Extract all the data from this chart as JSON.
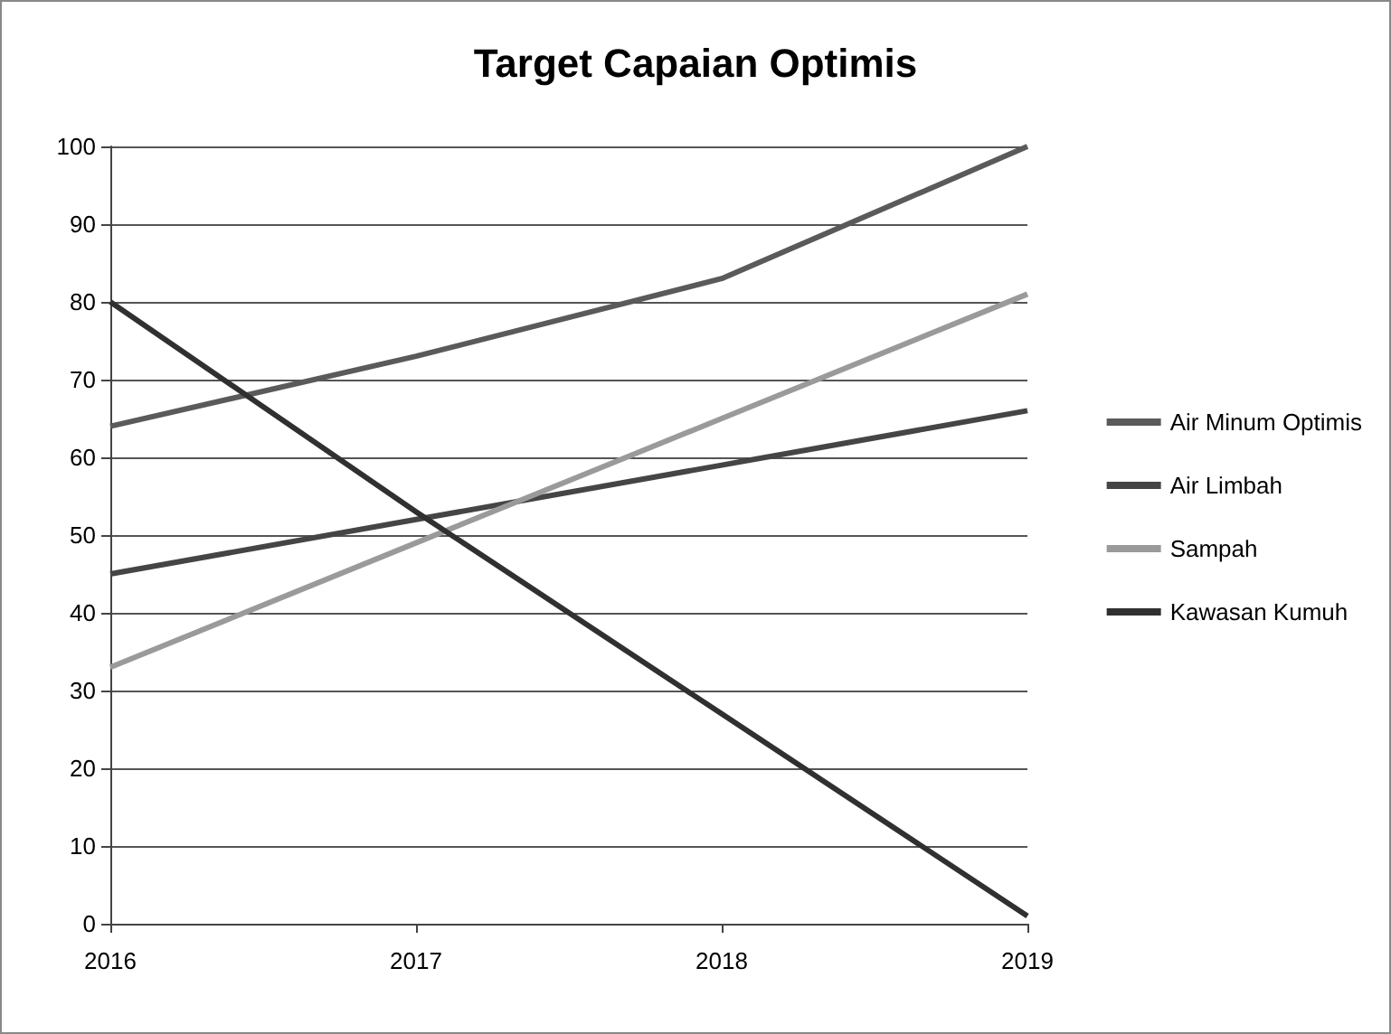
{
  "chart_data": {
    "type": "line",
    "title": "Target Capaian Optimis",
    "categories": [
      "2016",
      "2017",
      "2018",
      "2019"
    ],
    "series": [
      {
        "name": "Air Minum Optimis",
        "color": "#5a5a5a",
        "values": [
          64,
          73,
          83,
          100
        ]
      },
      {
        "name": "Air Limbah",
        "color": "#454545",
        "values": [
          45,
          52,
          59,
          66
        ]
      },
      {
        "name": "Sampah",
        "color": "#9a9a9a",
        "values": [
          33,
          49,
          65,
          81
        ]
      },
      {
        "name": "Kawasan Kumuh",
        "color": "#303030",
        "values": [
          80,
          53,
          27,
          1
        ]
      }
    ],
    "ylim": [
      0,
      100
    ],
    "yticks": [
      0,
      10,
      20,
      30,
      40,
      50,
      60,
      70,
      80,
      90,
      100
    ],
    "grid": "y",
    "legend": "right",
    "marker": "none",
    "line_style": "solid"
  }
}
